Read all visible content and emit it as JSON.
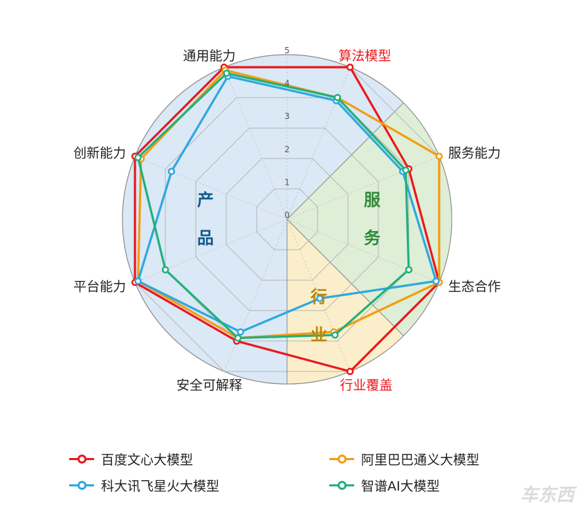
{
  "chart_data": {
    "type": "radar",
    "axes": [
      "通用能力",
      "算法模型",
      "服务能力",
      "生态合作",
      "行业覆盖",
      "安全可解释",
      "平台能力",
      "创新能力"
    ],
    "highlighted_axes": [
      "算法模型",
      "行业覆盖"
    ],
    "ticks": [
      "0",
      "1",
      "2",
      "3",
      "4",
      "5"
    ],
    "rmax": 5,
    "regions": [
      {
        "label": "产品",
        "color": "#0d5a8c",
        "fill": "#dbe8f6"
      },
      {
        "label": "服务",
        "color": "#2e8b3a",
        "fill": "#dfeed6"
      },
      {
        "label": "行业",
        "color": "#b8860b",
        "fill": "#fbeecb"
      }
    ],
    "series": [
      {
        "name": "百度文心大模型",
        "color": "#e8191c",
        "values": [
          5,
          5,
          4,
          5,
          5,
          4,
          5,
          5
        ]
      },
      {
        "name": "阿里巴巴通义大模型",
        "color": "#f39c12",
        "values": [
          4.9,
          4,
          5,
          5,
          3.7,
          3.9,
          4.9,
          4.8
        ]
      },
      {
        "name": "科大讯飞星火大模型",
        "color": "#2ea8df",
        "values": [
          4.7,
          3.9,
          3.8,
          4.9,
          2.6,
          3.7,
          4.9,
          3.8
        ]
      },
      {
        "name": "智谱AI大模型",
        "color": "#22b07d",
        "values": [
          4.8,
          4,
          3.9,
          4,
          3.8,
          3.9,
          4,
          4.9
        ]
      }
    ]
  },
  "watermark": "车东西"
}
